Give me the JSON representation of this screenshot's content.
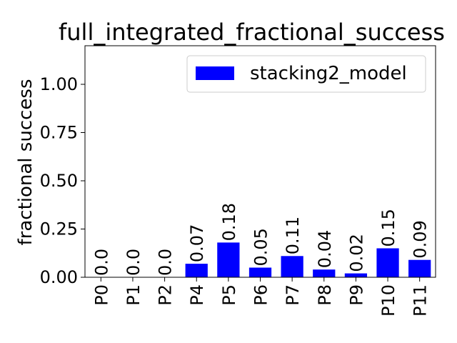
{
  "chart_data": {
    "type": "bar",
    "title": "full_integrated_fractional_success",
    "xlabel": "",
    "ylabel": "fractional success",
    "categories": [
      "P0",
      "P1",
      "P2",
      "P4",
      "P5",
      "P6",
      "P7",
      "P8",
      "P9",
      "P10",
      "P11"
    ],
    "series": [
      {
        "name": "stacking2_model",
        "color": "#0000ff",
        "values": [
          0.0,
          0.0,
          0.0,
          0.07,
          0.18,
          0.05,
          0.11,
          0.04,
          0.02,
          0.15,
          0.09
        ],
        "labels": [
          "0.0",
          "0.0",
          "0.0",
          "0.07",
          "0.18",
          "0.05",
          "0.11",
          "0.04",
          "0.02",
          "0.15",
          "0.09"
        ]
      }
    ],
    "ylim": [
      0,
      1.2
    ],
    "yticks": [
      0.0,
      0.25,
      0.5,
      0.75,
      1.0
    ],
    "ytick_labels": [
      "0.00",
      "0.25",
      "0.50",
      "0.75",
      "1.00"
    ],
    "grid": false,
    "legend_position": "top-right"
  }
}
